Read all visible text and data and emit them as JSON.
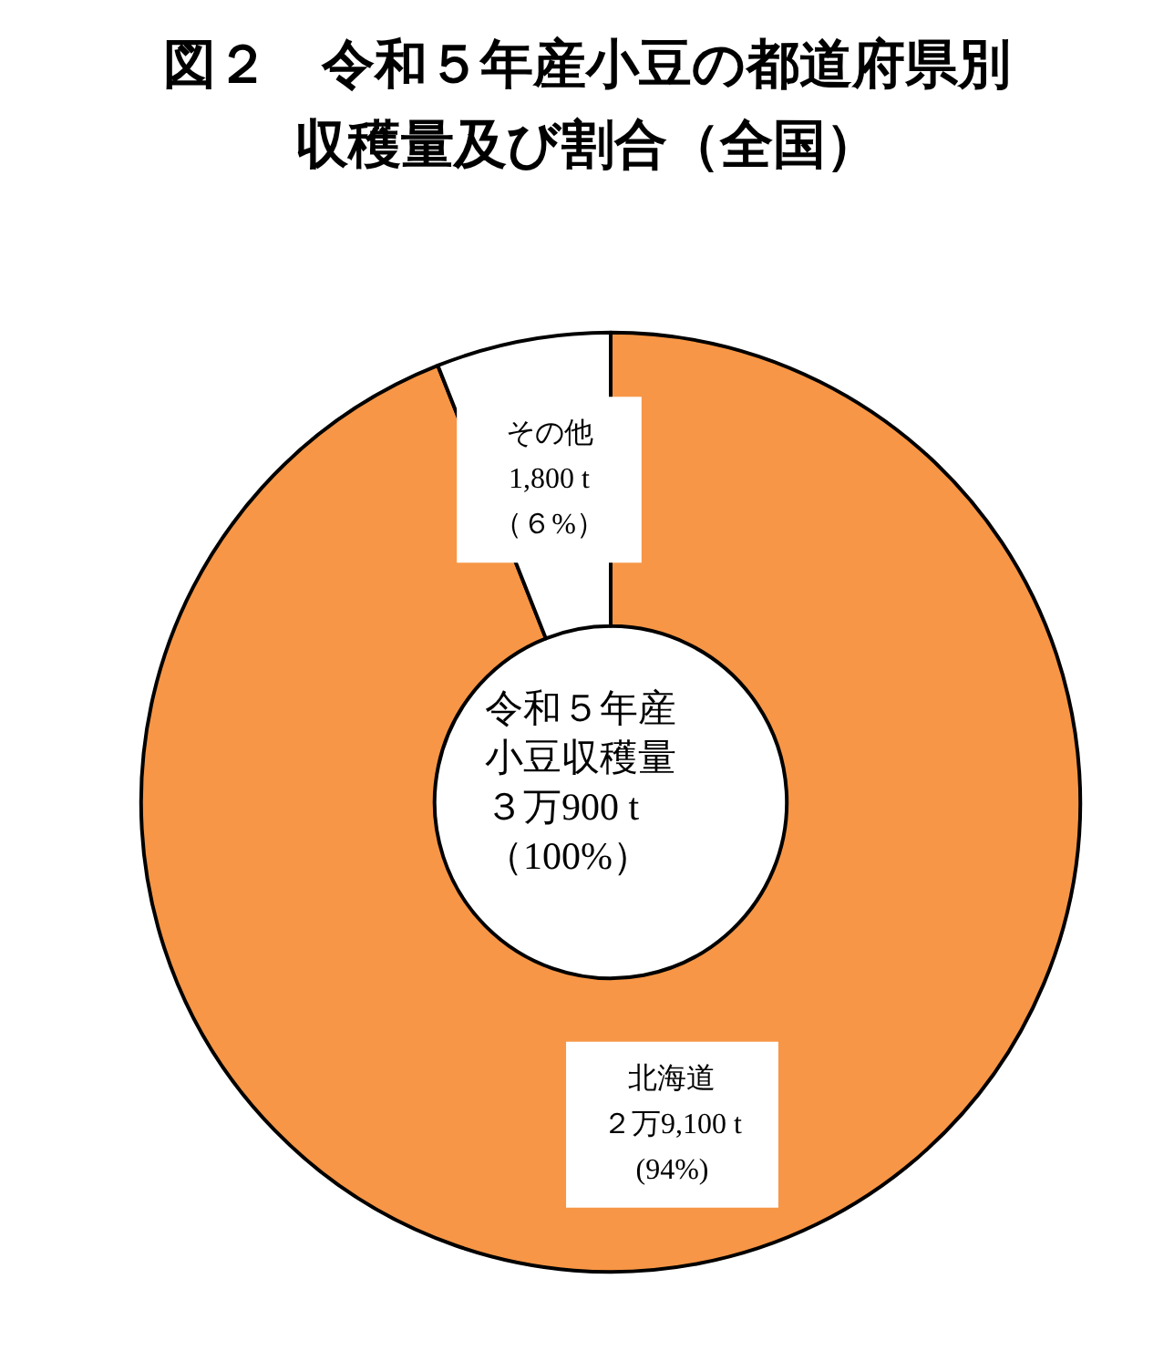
{
  "chart_data": {
    "type": "donut",
    "title": "図２　令和５年産小豆の都道府県別収穫量及び割合（全国）",
    "categories": [
      "北海道",
      "その他"
    ],
    "values": [
      94,
      6
    ],
    "colors": [
      "#f79646",
      "#ffffff"
    ],
    "value_labels": [
      "２万9,100 t\n(94%)",
      "1,800 t\n（６%）"
    ],
    "annotations": [
      "令和５年産小豆収穫量",
      "３万900 t （100%）"
    ],
    "legend": false
  }
}
